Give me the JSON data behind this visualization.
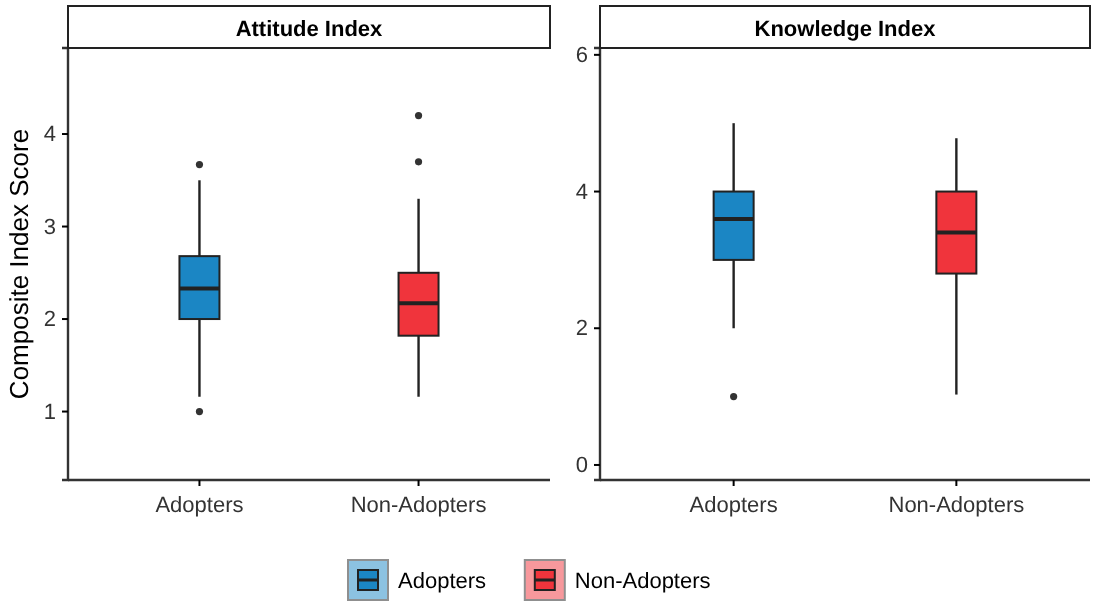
{
  "chart_data": [
    {
      "type": "box",
      "title": "Attitude Index",
      "ylabel": "Composite Index Score",
      "categories": [
        "Adopters",
        "Non-Adopters"
      ],
      "ylim": [
        0.26,
        4.93
      ],
      "yticks": [
        1,
        2,
        3,
        4
      ],
      "grid": false,
      "legend": "bottom",
      "series": [
        {
          "name": "Adopters",
          "color": "#1b86c4",
          "boxes": [
            {
              "low": 1.16,
              "q1": 2.0,
              "median": 2.33,
              "q3": 2.68,
              "high": 3.5,
              "outliers": [
                3.67,
                1.0
              ]
            },
            null
          ]
        },
        {
          "name": "Non-Adopters",
          "color": "#f0343c",
          "boxes": [
            null,
            {
              "low": 1.16,
              "q1": 1.82,
              "median": 2.17,
              "q3": 2.5,
              "high": 3.3,
              "outliers": [
                3.7,
                4.2
              ]
            }
          ]
        }
      ]
    },
    {
      "type": "box",
      "title": "Knowledge Index",
      "categories": [
        "Adopters",
        "Non-Adopters"
      ],
      "ylim": [
        -0.22,
        6.1
      ],
      "yticks": [
        0,
        2,
        4,
        6
      ],
      "grid": false,
      "series": [
        {
          "color": "#1b86c4",
          "boxes": [
            {
              "low": 2.0,
              "q1": 3.0,
              "median": 3.6,
              "q3": 4.0,
              "high": 5.0,
              "outliers": [
                1.0
              ]
            },
            null
          ]
        },
        {
          "color": "#f0343c",
          "boxes": [
            null,
            {
              "low": 1.03,
              "q1": 2.8,
              "median": 3.4,
              "q3": 4.0,
              "high": 4.78
            }
          ]
        }
      ]
    }
  ]
}
